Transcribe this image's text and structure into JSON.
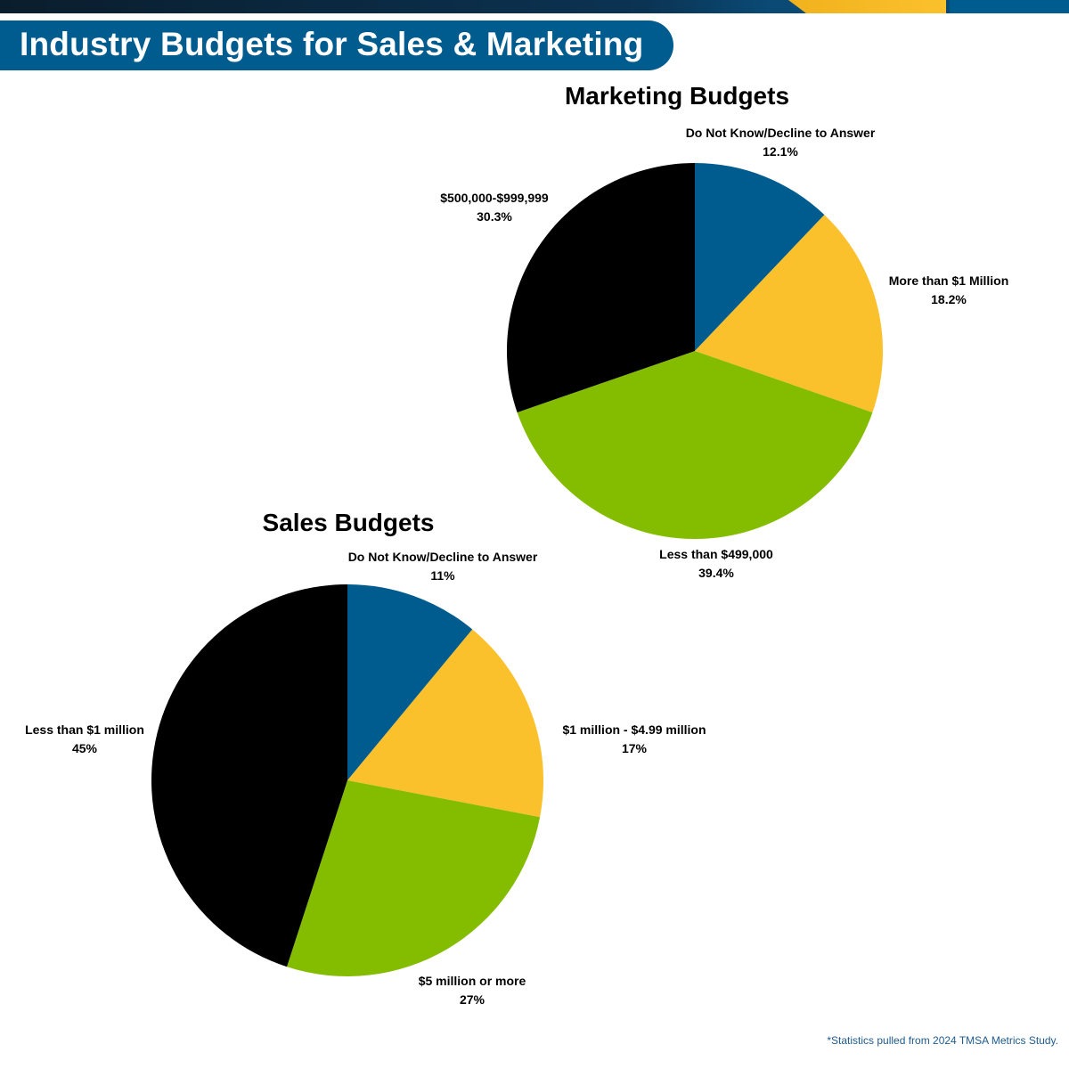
{
  "page": {
    "title": "Industry Budgets for Sales & Marketing",
    "footnote": "*Statistics pulled from 2024 TMSA Metrics Study."
  },
  "colors": {
    "brand_blue": "#005b8f",
    "gold": "#fbc12d",
    "green": "#84bd00",
    "black": "#000000",
    "top_bar_dark": "#0a1d2c",
    "footnote_blue": "#1f5b8e"
  },
  "chart_data": [
    {
      "type": "pie",
      "title": "Marketing Budgets",
      "start": "12 o'clock",
      "direction": "clockwise",
      "slices": [
        {
          "label": "Do Not Know/Decline to Answer",
          "value": 12.1,
          "value_label": "12.1%",
          "color": "#005b8f"
        },
        {
          "label": "More than $1 Million",
          "value": 18.2,
          "value_label": "18.2%",
          "color": "#fbc12d"
        },
        {
          "label": "Less than $499,000",
          "value": 39.4,
          "value_label": "39.4%",
          "color": "#84bd00"
        },
        {
          "label": "$500,000-$999,999",
          "value": 30.3,
          "value_label": "30.3%",
          "color": "#000000"
        }
      ]
    },
    {
      "type": "pie",
      "title": "Sales Budgets",
      "start": "12 o'clock",
      "direction": "clockwise",
      "slices": [
        {
          "label": "Do Not Know/Decline to Answer",
          "value": 11,
          "value_label": "11%",
          "color": "#005b8f"
        },
        {
          "label": "$1 million - $4.99 million",
          "value": 17,
          "value_label": "17%",
          "color": "#fbc12d"
        },
        {
          "label": "$5 million or more",
          "value": 27,
          "value_label": "27%",
          "color": "#84bd00"
        },
        {
          "label": "Less than $1 million",
          "value": 45,
          "value_label": "45%",
          "color": "#000000"
        }
      ]
    }
  ]
}
